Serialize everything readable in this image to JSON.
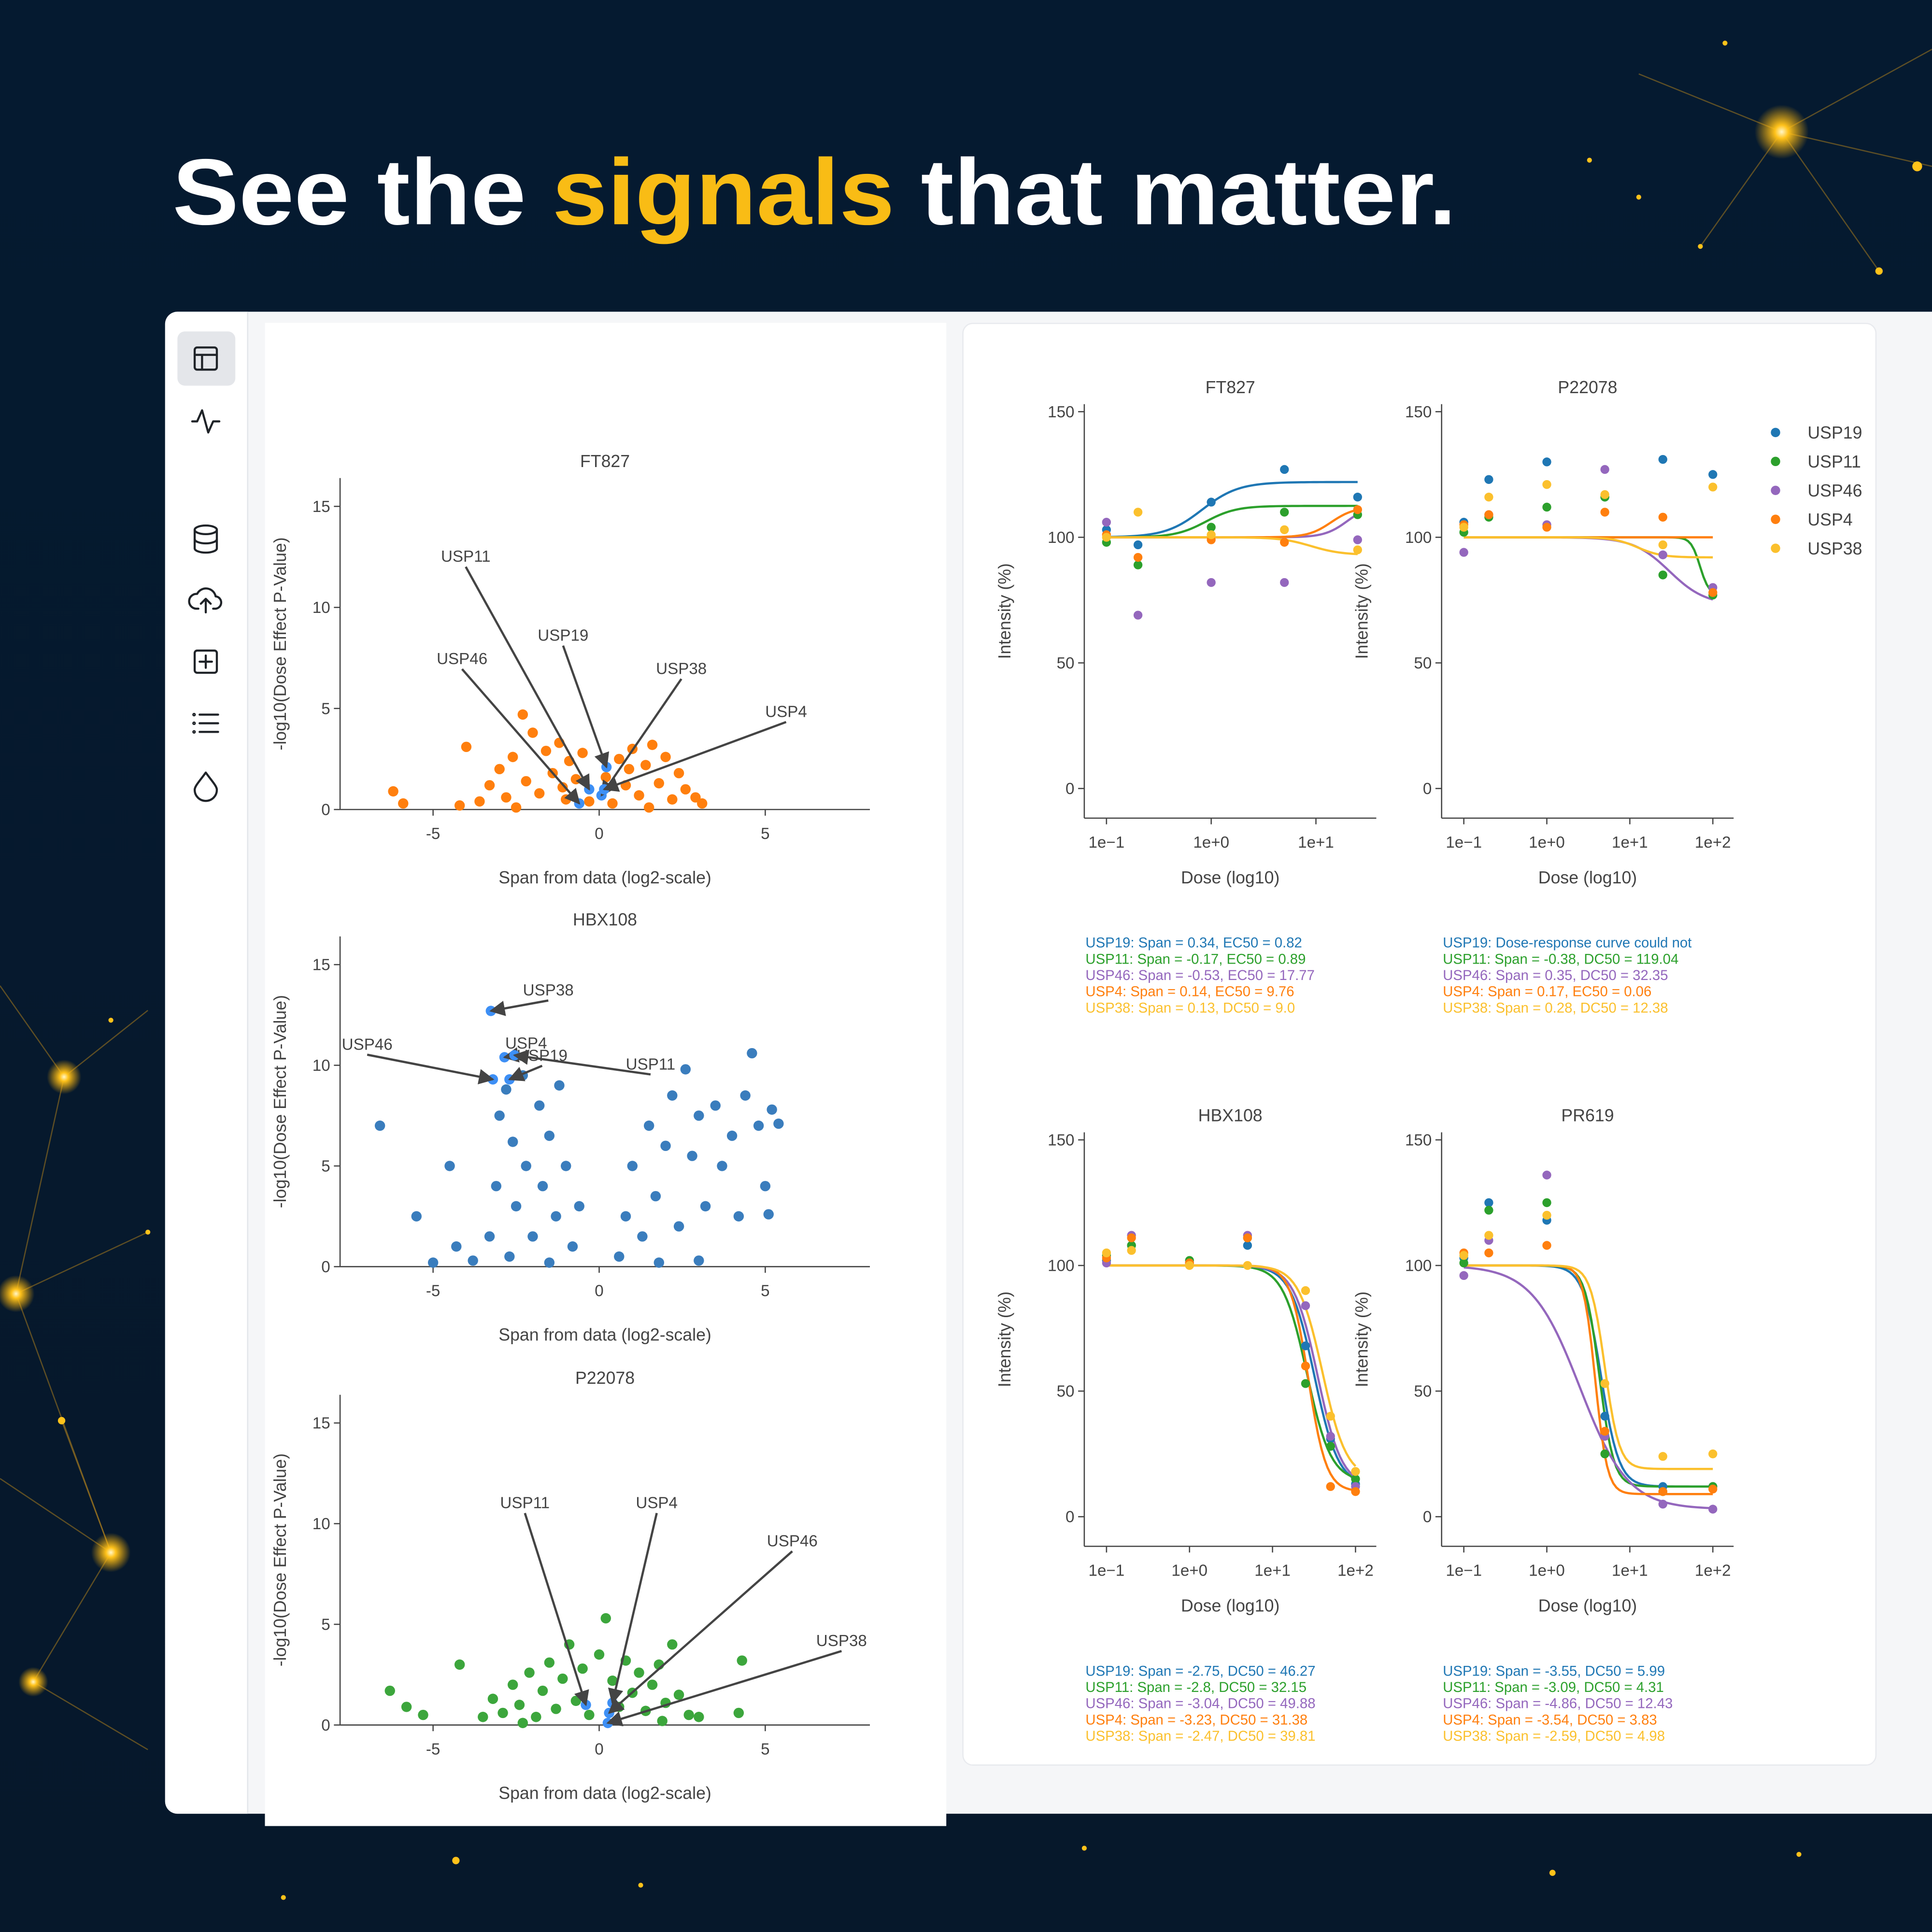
{
  "header": {
    "title": [
      "See the",
      "signals",
      "that matter."
    ]
  },
  "legend": [
    {
      "name": "USP19",
      "color": "#1f77b4"
    },
    {
      "name": "USP11",
      "color": "#2ca02c"
    },
    {
      "name": "USP46",
      "color": "#9467bd"
    },
    {
      "name": "USP4",
      "color": "#ff7f0e"
    },
    {
      "name": "USP38",
      "color": "#fbc02d"
    }
  ],
  "chart_data": [
    {
      "type": "scatter",
      "title": "FT827",
      "x_label": "Span from data (log2-scale)",
      "y_label": "-log10(Dose Effect P-Value)",
      "color": "#ff7f0e",
      "highlight_color": "#3d8ff5",
      "x": [
        -6.2,
        -5.9,
        -4.0,
        -4.2,
        -3.6,
        -3.3,
        -3.0,
        -2.8,
        -2.6,
        -2.3,
        -2.2,
        -2.0,
        -1.8,
        -1.6,
        -1.4,
        -1.2,
        -1.0,
        -0.9,
        -0.7,
        -0.5,
        -0.3,
        0.2,
        0.4,
        0.6,
        0.8,
        1.0,
        1.2,
        1.4,
        1.6,
        1.8,
        2.0,
        2.2,
        2.4,
        2.6,
        2.9,
        3.1,
        -2.5,
        1.5,
        -1.1,
        0.9
      ],
      "values": [
        0.9,
        0.3,
        3.1,
        0.2,
        0.4,
        1.2,
        2.0,
        0.6,
        2.6,
        4.7,
        1.4,
        3.8,
        0.8,
        2.9,
        1.8,
        3.3,
        0.5,
        2.4,
        1.5,
        2.8,
        0.4,
        1.6,
        0.3,
        2.5,
        1.2,
        3.0,
        0.7,
        2.2,
        3.2,
        1.3,
        2.6,
        0.5,
        1.8,
        1.0,
        0.6,
        0.3,
        0.1,
        0.1,
        1.1,
        2.0
      ],
      "annotations": [
        {
          "text": "USP11",
          "x": -0.3,
          "y": 1.0
        },
        {
          "text": "USP46",
          "x": -0.6,
          "y": 0.3
        },
        {
          "text": "USP19",
          "x": 0.22,
          "y": 2.1
        },
        {
          "text": "USP38",
          "x": 0.07,
          "y": 0.7
        },
        {
          "text": "USP4",
          "x": 0.15,
          "y": 1.0
        }
      ],
      "xlim": [
        -7.8,
        8.15
      ],
      "ylim": [
        0,
        16.4
      ],
      "xticks": [
        -5,
        0,
        5
      ],
      "yticks": [
        0,
        5,
        10,
        15
      ]
    },
    {
      "type": "scatter",
      "title": "HBX108",
      "x_label": "Span from data (log2-scale)",
      "y_label": "-log10(Dose Effect P-Value)",
      "color": "#3a7dbd",
      "highlight_color": "#3d8ff5",
      "x": [
        -6.6,
        -5.5,
        -5.0,
        -4.5,
        -4.3,
        -3.8,
        -3.3,
        -3.1,
        -3.0,
        -2.8,
        -2.6,
        -2.5,
        -2.3,
        -2.2,
        -2.0,
        -1.8,
        -1.7,
        -1.5,
        -1.3,
        -1.2,
        -1.0,
        -0.8,
        -0.6,
        -2.7,
        -1.5,
        0.6,
        0.8,
        1.0,
        1.3,
        1.5,
        1.7,
        2.0,
        2.2,
        2.4,
        2.6,
        2.8,
        3.0,
        3.2,
        3.5,
        3.7,
        4.0,
        4.2,
        4.4,
        4.6,
        4.8,
        5.0,
        5.2,
        5.4,
        5.1,
        3.0,
        1.8
      ],
      "values": [
        7.0,
        2.5,
        0.2,
        5.0,
        1.0,
        0.3,
        1.5,
        4.0,
        7.5,
        8.8,
        6.2,
        3.0,
        9.5,
        5.0,
        1.5,
        8.0,
        4.0,
        6.5,
        2.5,
        9.0,
        5.0,
        1.0,
        3.0,
        0.5,
        0.2,
        0.5,
        2.5,
        5.0,
        1.5,
        7.0,
        3.5,
        6.0,
        8.5,
        2.0,
        9.8,
        5.5,
        7.5,
        3.0,
        8.0,
        5.0,
        6.5,
        2.5,
        8.5,
        10.6,
        7.0,
        4.0,
        7.8,
        7.1,
        2.6,
        0.3,
        0.2
      ],
      "annotations": [
        {
          "text": "USP38",
          "x": -3.26,
          "y": 12.7
        },
        {
          "text": "USP4",
          "x": -2.85,
          "y": 10.4
        },
        {
          "text": "USP46",
          "x": -3.2,
          "y": 9.3
        },
        {
          "text": "USP19",
          "x": -2.7,
          "y": 9.3
        },
        {
          "text": "USP11",
          "x": -2.55,
          "y": 10.5
        }
      ],
      "xlim": [
        -7.8,
        8.15
      ],
      "ylim": [
        0,
        16.4
      ],
      "xticks": [
        -5,
        0,
        5
      ],
      "yticks": [
        0,
        5,
        10,
        15
      ]
    },
    {
      "type": "scatter",
      "title": "P22078",
      "x_label": "Span from data (log2-scale)",
      "y_label": "-log10(Dose Effect P-Value)",
      "color": "#3ca63c",
      "highlight_color": "#3d8ff5",
      "x": [
        -6.3,
        -5.8,
        -5.3,
        -4.2,
        -3.5,
        -3.2,
        -2.9,
        -2.6,
        -2.4,
        -2.1,
        -1.9,
        -1.7,
        -1.5,
        -1.3,
        -1.1,
        -0.9,
        -0.7,
        -0.5,
        -0.3,
        0.0,
        0.2,
        0.4,
        0.6,
        0.8,
        1.0,
        1.2,
        1.4,
        1.6,
        1.8,
        2.0,
        2.2,
        2.4,
        2.7,
        3.0,
        4.2,
        4.3,
        -2.3,
        1.9
      ],
      "values": [
        1.7,
        0.9,
        0.5,
        3.0,
        0.4,
        1.3,
        0.6,
        2.0,
        1.0,
        2.6,
        0.4,
        1.7,
        3.1,
        0.8,
        2.3,
        4.0,
        1.2,
        2.8,
        0.5,
        3.5,
        5.3,
        2.2,
        0.9,
        3.2,
        1.6,
        2.6,
        0.7,
        2.0,
        3.0,
        1.1,
        4.0,
        1.5,
        0.5,
        0.4,
        0.6,
        3.2,
        0.1,
        0.2
      ],
      "annotations": [
        {
          "text": "USP11",
          "x": -0.4,
          "y": 1.0
        },
        {
          "text": "USP4",
          "x": 0.4,
          "y": 1.1
        },
        {
          "text": "USP46",
          "x": 0.3,
          "y": 0.6
        },
        {
          "text": "USP38",
          "x": 0.26,
          "y": 0.1
        }
      ],
      "xlim": [
        -7.8,
        8.15
      ],
      "ylim": [
        0,
        16.4
      ],
      "xticks": [
        -5,
        0,
        5
      ],
      "yticks": [
        0,
        5,
        10,
        15
      ]
    },
    {
      "type": "dose-response",
      "title": "FT827",
      "x_label": "Dose (log10)",
      "y_label": "Intensity (%)",
      "log_x": true,
      "xlim": [
        0.0614,
        37.7
      ],
      "xticks": [
        {
          "value": 0.1,
          "label": "1e−1"
        },
        {
          "value": 1,
          "label": "1e+0"
        },
        {
          "value": 10,
          "label": "1e+1"
        }
      ],
      "ylim": [
        -11.8,
        153
      ],
      "yticks": [
        0,
        50,
        100,
        150
      ],
      "x": [
        0.1,
        0.2,
        1,
        5,
        25
      ],
      "series": [
        {
          "values": [
            103,
            97,
            114,
            127,
            116
          ],
          "fit": {
            "start": 100,
            "end": 122,
            "ec50": 0.82,
            "hill": 2.5
          }
        },
        {
          "values": [
            98,
            89,
            104,
            110,
            109
          ],
          "fit": {
            "start": 100,
            "end": 112.5,
            "ec50": 0.89,
            "hill": 3
          }
        },
        {
          "values": [
            106,
            69,
            82,
            82,
            99
          ],
          "fit": {
            "start": 100,
            "end": 113,
            "ec50": 20,
            "hill": 4
          }
        },
        {
          "values": [
            101,
            92,
            99,
            98,
            111
          ],
          "fit": {
            "start": 100,
            "end": 112,
            "ec50": 14,
            "hill": 4
          }
        },
        {
          "values": [
            100,
            110,
            101,
            103,
            95
          ],
          "fit": {
            "start": 100,
            "end": 93,
            "ec50": 9.0,
            "hill": 3
          }
        }
      ],
      "fit_labels": [
        "USP19: Span = 0.34, EC50 = 0.82",
        "USP11: Span = -0.17, EC50 = 0.89",
        "USP46: Span = -0.53, EC50 = 17.77",
        "USP4: Span = 0.14, EC50 = 9.76",
        "USP38: Span = 0.13, DC50 = 9.0"
      ]
    },
    {
      "type": "dose-response",
      "title": "P22078",
      "x_label": "Dose (log10)",
      "y_label": "Intensity (%)",
      "log_x": true,
      "legend": "right",
      "xlim": [
        0.054,
        178
      ],
      "xticks": [
        {
          "value": 0.1,
          "label": "1e−1"
        },
        {
          "value": 1,
          "label": "1e+0"
        },
        {
          "value": 10,
          "label": "1e+1"
        },
        {
          "value": 100,
          "label": "1e+2"
        }
      ],
      "ylim": [
        -11.8,
        153
      ],
      "yticks": [
        0,
        50,
        100,
        150
      ],
      "x": [
        0.1,
        0.2,
        1,
        5,
        25,
        100
      ],
      "series": [
        {
          "values": [
            106,
            123,
            130,
            116,
            131,
            125
          ],
          "fit": null
        },
        {
          "values": [
            102,
            108,
            112,
            116,
            85,
            77
          ],
          "fit": {
            "start": 100,
            "end": 77,
            "ec50": 70,
            "hill": 8
          }
        },
        {
          "values": [
            94,
            109,
            105,
            127,
            93,
            80
          ],
          "fit": {
            "start": 100,
            "end": 73,
            "ec50": 30,
            "hill": 2
          }
        },
        {
          "values": [
            105,
            109,
            104,
            110,
            108,
            78
          ],
          "fit": {
            "start": 100,
            "end": 100,
            "ec50": 0.06,
            "hill": 1
          }
        },
        {
          "values": [
            104,
            116,
            121,
            117,
            97,
            120
          ],
          "fit": {
            "start": 100,
            "end": 92,
            "ec50": 12.38,
            "hill": 3
          }
        }
      ],
      "fit_labels": [
        "USP19: Dose-response curve could not",
        "USP11: Span = -0.38, DC50 = 119.04",
        "USP46: Span = 0.35, DC50 = 32.35",
        "USP4: Span = 0.17, EC50 = 0.06",
        "USP38: Span = 0.28, DC50 = 12.38"
      ]
    },
    {
      "type": "dose-response",
      "title": "HBX108",
      "x_label": "Dose (log10)",
      "y_label": "Intensity (%)",
      "log_x": true,
      "xlim": [
        0.054,
        178
      ],
      "xticks": [
        {
          "value": 0.1,
          "label": "1e−1"
        },
        {
          "value": 1,
          "label": "1e+0"
        },
        {
          "value": 10,
          "label": "1e+1"
        },
        {
          "value": 100,
          "label": "1e+2"
        }
      ],
      "ylim": [
        -11.8,
        153
      ],
      "yticks": [
        0,
        50,
        100,
        150
      ],
      "x": [
        0.1,
        0.2,
        1,
        5,
        25,
        50,
        100
      ],
      "series": [
        {
          "values": [
            102,
            108,
            101,
            108,
            68,
            31,
            13
          ],
          "fit": {
            "start": 100,
            "end": 12,
            "ec50": 32,
            "hill": 3
          }
        },
        {
          "values": [
            104,
            108,
            102,
            111,
            53,
            28,
            15
          ],
          "fit": {
            "start": 100,
            "end": 14,
            "ec50": 26,
            "hill": 3
          }
        },
        {
          "values": [
            101,
            112,
            101,
            112,
            84,
            32,
            12
          ],
          "fit": {
            "start": 100,
            "end": 12,
            "ec50": 35,
            "hill": 3
          }
        },
        {
          "values": [
            103,
            111,
            101,
            111,
            60,
            12,
            10
          ],
          "fit": {
            "start": 100,
            "end": 10,
            "ec50": 27,
            "hill": 4
          }
        },
        {
          "values": [
            105,
            106,
            100,
            100,
            90,
            40,
            18
          ],
          "fit": {
            "start": 100,
            "end": 15,
            "ec50": 40,
            "hill": 3
          }
        }
      ],
      "fit_labels": [
        "USP19: Span = -2.75, DC50 = 46.27",
        "USP11: Span = -2.8, DC50 = 32.15",
        "USP46: Span = -3.04, DC50 = 49.88",
        "USP4: Span = -3.23, DC50 = 31.38",
        "USP38: Span = -2.47, DC50 = 39.81"
      ]
    },
    {
      "type": "dose-response",
      "title": "PR619",
      "x_label": "Dose (log10)",
      "y_label": "Intensity (%)",
      "log_x": true,
      "xlim": [
        0.054,
        178
      ],
      "xticks": [
        {
          "value": 0.1,
          "label": "1e−1"
        },
        {
          "value": 1,
          "label": "1e+0"
        },
        {
          "value": 10,
          "label": "1e+1"
        },
        {
          "value": 100,
          "label": "1e+2"
        }
      ],
      "ylim": [
        -11.8,
        153
      ],
      "yticks": [
        0,
        50,
        100,
        150
      ],
      "x": [
        0.1,
        0.2,
        1,
        5,
        25,
        100
      ],
      "series": [
        {
          "values": [
            103,
            125,
            118,
            40,
            12,
            12
          ],
          "fit": {
            "start": 100,
            "end": 12,
            "ec50": 4.5,
            "hill": 4
          }
        },
        {
          "values": [
            101,
            122,
            125,
            25,
            10,
            12
          ],
          "fit": {
            "start": 100,
            "end": 12,
            "ec50": 4.3,
            "hill": 5
          }
        },
        {
          "values": [
            96,
            110,
            136,
            32,
            5,
            3
          ],
          "fit": {
            "start": 100,
            "end": 3,
            "ec50": 2.5,
            "hill": 1.5
          }
        },
        {
          "values": [
            105,
            105,
            108,
            34,
            10,
            11
          ],
          "fit": {
            "start": 100,
            "end": 9,
            "ec50": 3.83,
            "hill": 6
          }
        },
        {
          "values": [
            104,
            112,
            120,
            53,
            24,
            25
          ],
          "fit": {
            "start": 100,
            "end": 19,
            "ec50": 5,
            "hill": 5
          }
        }
      ],
      "fit_labels": [
        "USP19: Span = -3.55, DC50 = 5.99",
        "USP11: Span = -3.09, DC50 = 4.31",
        "USP46: Span = -4.86, DC50 = 12.43",
        "USP4: Span = -3.54, DC50 = 3.83",
        "USP38: Span = -2.59, DC50 = 4.98"
      ]
    }
  ]
}
